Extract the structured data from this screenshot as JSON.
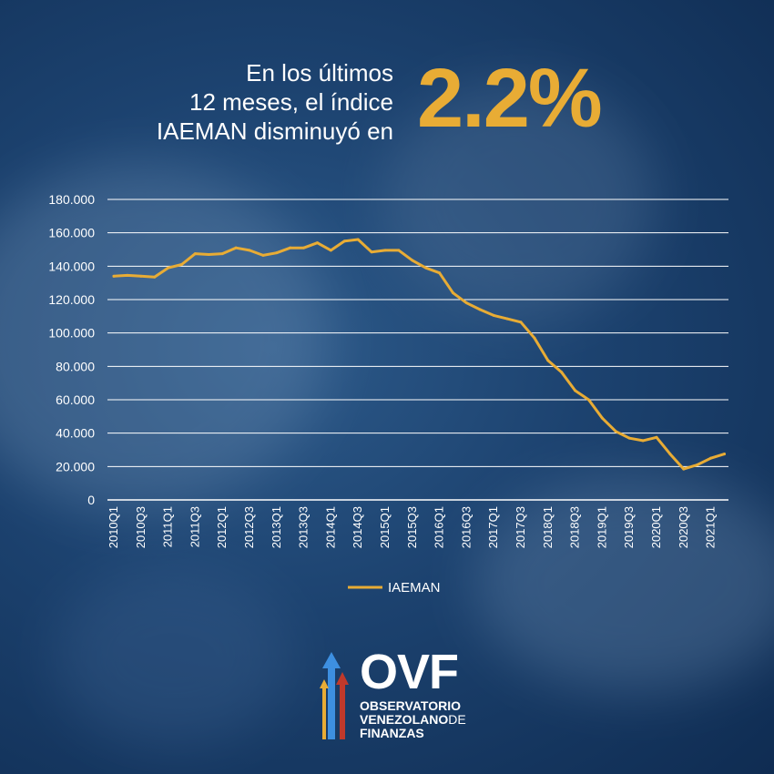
{
  "headline": {
    "text_lines": [
      "En los últimos",
      "12 meses, el índice",
      "IAEMAN disminuyó en"
    ],
    "value": "2.2%"
  },
  "colors": {
    "accent": "#e8ac35",
    "grid": "#ffffff",
    "text": "#ffffff",
    "background": "#1c426f"
  },
  "chart_data": {
    "type": "line",
    "title": "",
    "xlabel": "",
    "ylabel": "",
    "ylim": [
      0,
      180000
    ],
    "yticks": [
      0,
      20000,
      40000,
      60000,
      80000,
      100000,
      120000,
      140000,
      160000,
      180000
    ],
    "ytick_labels": [
      "0",
      "20.000",
      "40.000",
      "60.000",
      "80.000",
      "100.000",
      "120.000",
      "140.000",
      "160.000",
      "180.000"
    ],
    "grid": true,
    "legend_position": "bottom-center",
    "x": [
      "2010Q1",
      "2010Q2",
      "2010Q3",
      "2010Q4",
      "2011Q1",
      "2011Q2",
      "2011Q3",
      "2011Q4",
      "2012Q1",
      "2012Q2",
      "2012Q3",
      "2012Q4",
      "2013Q1",
      "2013Q2",
      "2013Q3",
      "2013Q4",
      "2014Q1",
      "2014Q2",
      "2014Q3",
      "2014Q4",
      "2015Q1",
      "2015Q2",
      "2015Q3",
      "2015Q4",
      "2016Q1",
      "2016Q2",
      "2016Q3",
      "2016Q4",
      "2017Q1",
      "2017Q2",
      "2017Q3",
      "2017Q4",
      "2018Q1",
      "2018Q2",
      "2018Q3",
      "2018Q4",
      "2019Q1",
      "2019Q2",
      "2019Q3",
      "2019Q4",
      "2020Q1",
      "2020Q2",
      "2020Q3",
      "2020Q4",
      "2021Q1",
      "2021Q2"
    ],
    "xtick_labels": [
      "2010Q1",
      "2010Q3",
      "2011Q1",
      "2011Q3",
      "2012Q1",
      "2012Q3",
      "2013Q1",
      "2013Q3",
      "2014Q1",
      "2014Q3",
      "2015Q1",
      "2015Q3",
      "2016Q1",
      "2016Q3",
      "2017Q1",
      "2017Q3",
      "2018Q1",
      "2018Q3",
      "2019Q1",
      "2019Q3",
      "2020Q1",
      "2020Q3",
      "2021Q1"
    ],
    "series": [
      {
        "name": "IAEMAN",
        "color": "#e8ac35",
        "values": [
          134000,
          134500,
          134000,
          133500,
          139000,
          141000,
          147500,
          147000,
          147500,
          151000,
          149500,
          146500,
          148000,
          151000,
          151000,
          154000,
          149500,
          155000,
          156000,
          148500,
          149500,
          149500,
          143500,
          139000,
          136000,
          124000,
          118000,
          114000,
          110500,
          108500,
          106500,
          97000,
          83500,
          76500,
          65500,
          60000,
          49000,
          41000,
          37000,
          35500,
          37500,
          27500,
          18500,
          21000,
          25000,
          27500
        ]
      }
    ]
  },
  "logo": {
    "name": "OVF",
    "line1": "OBSERVATORIO",
    "line2": "VENEZOLANO",
    "line2_suffix": "DE",
    "line3": "FINANZAS"
  }
}
